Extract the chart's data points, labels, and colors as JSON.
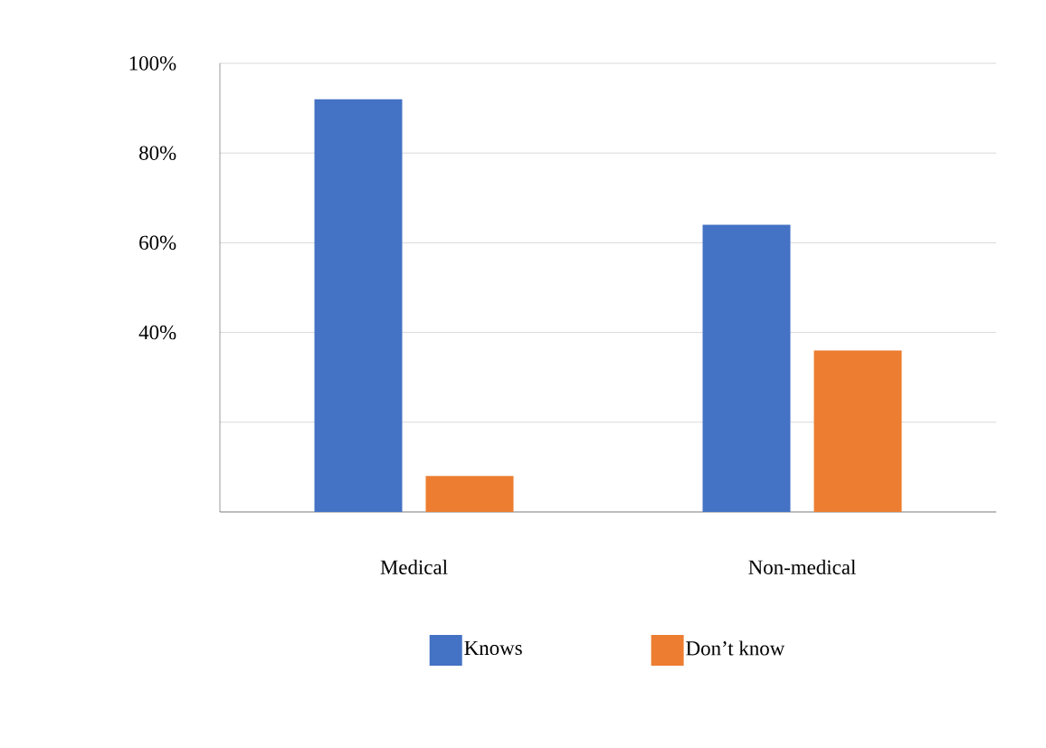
{
  "chart_data": {
    "type": "bar",
    "categories": [
      "Medical",
      "Non-medical"
    ],
    "series": [
      {
        "name": "Knows",
        "color": "#4472c4",
        "values": [
          92,
          64
        ]
      },
      {
        "name": "Don’t know",
        "color": "#ed7d31",
        "values": [
          8,
          36
        ]
      }
    ],
    "ylim": [
      0,
      100
    ],
    "yticks": [
      {
        "value": 0,
        "label": null
      },
      {
        "value": 20,
        "label": null
      },
      {
        "value": 40,
        "label": "40%"
      },
      {
        "value": 60,
        "label": "60%"
      },
      {
        "value": 80,
        "label": "80%"
      },
      {
        "value": 100,
        "label": "100%"
      }
    ],
    "grid": "y",
    "legend": "bottom"
  }
}
